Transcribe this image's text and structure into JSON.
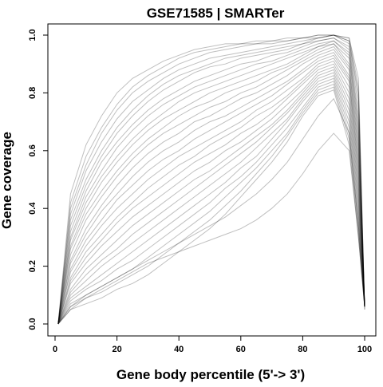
{
  "chart_data": {
    "type": "line",
    "title": "GSE71585 | SMARTer",
    "xlabel": "Gene body percentile (5'-> 3')",
    "ylabel": "Gene coverage",
    "xlim": [
      0,
      100
    ],
    "ylim": [
      0,
      1
    ],
    "x_ticks": [
      "0",
      "20",
      "40",
      "60",
      "80",
      "100"
    ],
    "y_ticks": [
      "0.0",
      "0.2",
      "0.4",
      "0.6",
      "0.8",
      "1.0"
    ],
    "grid": false,
    "legend": "none",
    "line_color": "#000000",
    "line_opacity": 0.25,
    "x": [
      1,
      5,
      10,
      15,
      20,
      25,
      30,
      35,
      40,
      45,
      50,
      55,
      60,
      65,
      70,
      75,
      80,
      85,
      90,
      95,
      98,
      100
    ],
    "series": [
      {
        "values": [
          0,
          0.45,
          0.62,
          0.72,
          0.8,
          0.85,
          0.88,
          0.91,
          0.93,
          0.95,
          0.96,
          0.97,
          0.97,
          0.98,
          0.98,
          0.99,
          0.99,
          1.0,
          1.0,
          0.99,
          0.85,
          0.05
        ]
      },
      {
        "values": [
          0,
          0.42,
          0.58,
          0.68,
          0.76,
          0.82,
          0.86,
          0.89,
          0.92,
          0.94,
          0.95,
          0.96,
          0.97,
          0.97,
          0.98,
          0.98,
          0.99,
          0.99,
          1.0,
          0.99,
          0.82,
          0.05
        ]
      },
      {
        "values": [
          0,
          0.4,
          0.55,
          0.66,
          0.74,
          0.8,
          0.84,
          0.87,
          0.9,
          0.92,
          0.94,
          0.95,
          0.96,
          0.97,
          0.97,
          0.98,
          0.99,
          1.0,
          1.0,
          0.98,
          0.8,
          0.06
        ]
      },
      {
        "values": [
          0,
          0.38,
          0.53,
          0.63,
          0.71,
          0.77,
          0.81,
          0.85,
          0.88,
          0.9,
          0.92,
          0.93,
          0.94,
          0.95,
          0.96,
          0.97,
          0.98,
          0.99,
          1.0,
          0.98,
          0.78,
          0.06
        ]
      },
      {
        "values": [
          0,
          0.36,
          0.5,
          0.6,
          0.68,
          0.74,
          0.79,
          0.83,
          0.86,
          0.88,
          0.9,
          0.92,
          0.93,
          0.94,
          0.95,
          0.96,
          0.97,
          0.99,
          1.0,
          0.97,
          0.75,
          0.06
        ]
      },
      {
        "values": [
          0,
          0.34,
          0.48,
          0.58,
          0.66,
          0.72,
          0.77,
          0.81,
          0.84,
          0.87,
          0.89,
          0.9,
          0.92,
          0.93,
          0.94,
          0.95,
          0.97,
          0.98,
          0.99,
          0.96,
          0.72,
          0.06
        ]
      },
      {
        "values": [
          0,
          0.32,
          0.46,
          0.56,
          0.63,
          0.69,
          0.74,
          0.78,
          0.81,
          0.84,
          0.86,
          0.88,
          0.9,
          0.91,
          0.93,
          0.94,
          0.96,
          0.98,
          0.99,
          0.95,
          0.7,
          0.06
        ]
      },
      {
        "values": [
          0,
          0.3,
          0.44,
          0.53,
          0.61,
          0.67,
          0.72,
          0.76,
          0.79,
          0.82,
          0.84,
          0.86,
          0.88,
          0.9,
          0.91,
          0.93,
          0.95,
          0.97,
          0.98,
          0.94,
          0.68,
          0.06
        ]
      },
      {
        "values": [
          0,
          0.29,
          0.42,
          0.51,
          0.58,
          0.64,
          0.69,
          0.73,
          0.77,
          0.8,
          0.82,
          0.84,
          0.86,
          0.88,
          0.9,
          0.92,
          0.94,
          0.96,
          0.98,
          0.93,
          0.66,
          0.06
        ]
      },
      {
        "values": [
          0,
          0.27,
          0.4,
          0.49,
          0.56,
          0.62,
          0.67,
          0.71,
          0.74,
          0.77,
          0.8,
          0.82,
          0.84,
          0.86,
          0.88,
          0.9,
          0.93,
          0.96,
          0.97,
          0.92,
          0.64,
          0.06
        ]
      },
      {
        "values": [
          0,
          0.26,
          0.38,
          0.46,
          0.53,
          0.59,
          0.64,
          0.68,
          0.72,
          0.75,
          0.77,
          0.8,
          0.82,
          0.84,
          0.87,
          0.89,
          0.92,
          0.95,
          0.97,
          0.9,
          0.62,
          0.06
        ]
      },
      {
        "values": [
          0,
          0.24,
          0.36,
          0.44,
          0.51,
          0.57,
          0.62,
          0.66,
          0.69,
          0.72,
          0.75,
          0.77,
          0.8,
          0.82,
          0.85,
          0.88,
          0.91,
          0.94,
          0.96,
          0.89,
          0.6,
          0.06
        ]
      },
      {
        "values": [
          0,
          0.22,
          0.33,
          0.41,
          0.48,
          0.54,
          0.59,
          0.63,
          0.66,
          0.7,
          0.72,
          0.75,
          0.78,
          0.8,
          0.83,
          0.86,
          0.9,
          0.93,
          0.95,
          0.88,
          0.58,
          0.06
        ]
      },
      {
        "values": [
          0,
          0.21,
          0.31,
          0.39,
          0.45,
          0.51,
          0.56,
          0.6,
          0.63,
          0.67,
          0.7,
          0.72,
          0.75,
          0.78,
          0.81,
          0.84,
          0.88,
          0.92,
          0.94,
          0.86,
          0.56,
          0.06
        ]
      },
      {
        "values": [
          0,
          0.19,
          0.29,
          0.36,
          0.43,
          0.48,
          0.53,
          0.57,
          0.6,
          0.64,
          0.67,
          0.7,
          0.73,
          0.76,
          0.79,
          0.83,
          0.87,
          0.91,
          0.93,
          0.85,
          0.54,
          0.06
        ]
      },
      {
        "values": [
          0,
          0.18,
          0.27,
          0.34,
          0.4,
          0.45,
          0.5,
          0.54,
          0.58,
          0.61,
          0.64,
          0.67,
          0.7,
          0.74,
          0.77,
          0.81,
          0.85,
          0.9,
          0.92,
          0.84,
          0.52,
          0.06
        ]
      },
      {
        "values": [
          0,
          0.16,
          0.25,
          0.31,
          0.37,
          0.42,
          0.47,
          0.51,
          0.55,
          0.58,
          0.62,
          0.65,
          0.68,
          0.72,
          0.75,
          0.79,
          0.84,
          0.89,
          0.91,
          0.82,
          0.5,
          0.06
        ]
      },
      {
        "values": [
          0,
          0.15,
          0.23,
          0.29,
          0.35,
          0.4,
          0.44,
          0.48,
          0.52,
          0.56,
          0.59,
          0.62,
          0.66,
          0.69,
          0.73,
          0.78,
          0.83,
          0.88,
          0.9,
          0.8,
          0.48,
          0.06
        ]
      },
      {
        "values": [
          0,
          0.14,
          0.21,
          0.27,
          0.32,
          0.37,
          0.41,
          0.45,
          0.49,
          0.53,
          0.56,
          0.6,
          0.63,
          0.67,
          0.71,
          0.76,
          0.81,
          0.87,
          0.89,
          0.78,
          0.46,
          0.06
        ]
      },
      {
        "values": [
          0,
          0.12,
          0.19,
          0.24,
          0.29,
          0.34,
          0.38,
          0.42,
          0.46,
          0.5,
          0.53,
          0.57,
          0.61,
          0.65,
          0.69,
          0.74,
          0.8,
          0.86,
          0.88,
          0.76,
          0.44,
          0.06
        ]
      },
      {
        "values": [
          0,
          0.11,
          0.17,
          0.22,
          0.26,
          0.31,
          0.35,
          0.39,
          0.43,
          0.47,
          0.51,
          0.55,
          0.59,
          0.63,
          0.68,
          0.73,
          0.79,
          0.85,
          0.87,
          0.74,
          0.42,
          0.06
        ]
      },
      {
        "values": [
          0,
          0.1,
          0.15,
          0.2,
          0.24,
          0.28,
          0.32,
          0.36,
          0.4,
          0.44,
          0.48,
          0.52,
          0.56,
          0.61,
          0.66,
          0.71,
          0.78,
          0.84,
          0.86,
          0.72,
          0.4,
          0.06
        ]
      },
      {
        "values": [
          0,
          0.09,
          0.13,
          0.17,
          0.21,
          0.25,
          0.29,
          0.33,
          0.37,
          0.41,
          0.45,
          0.49,
          0.54,
          0.58,
          0.64,
          0.7,
          0.77,
          0.83,
          0.85,
          0.7,
          0.38,
          0.06
        ]
      },
      {
        "values": [
          0,
          0.08,
          0.12,
          0.15,
          0.19,
          0.22,
          0.26,
          0.3,
          0.34,
          0.38,
          0.42,
          0.47,
          0.51,
          0.56,
          0.62,
          0.68,
          0.75,
          0.82,
          0.84,
          0.68,
          0.36,
          0.06
        ]
      },
      {
        "values": [
          0,
          0.07,
          0.1,
          0.13,
          0.16,
          0.19,
          0.23,
          0.27,
          0.31,
          0.35,
          0.39,
          0.44,
          0.49,
          0.54,
          0.6,
          0.66,
          0.74,
          0.81,
          0.83,
          0.66,
          0.34,
          0.06
        ]
      },
      {
        "values": [
          0,
          0.06,
          0.09,
          0.11,
          0.14,
          0.17,
          0.2,
          0.24,
          0.28,
          0.32,
          0.36,
          0.41,
          0.46,
          0.52,
          0.58,
          0.65,
          0.73,
          0.8,
          0.82,
          0.64,
          0.32,
          0.06
        ]
      },
      {
        "values": [
          0,
          0.05,
          0.07,
          0.09,
          0.12,
          0.14,
          0.17,
          0.21,
          0.25,
          0.29,
          0.33,
          0.38,
          0.44,
          0.5,
          0.56,
          0.63,
          0.72,
          0.79,
          0.81,
          0.62,
          0.3,
          0.06
        ]
      },
      {
        "values": [
          0,
          0.05,
          0.09,
          0.12,
          0.15,
          0.18,
          0.21,
          0.23,
          0.25,
          0.27,
          0.29,
          0.31,
          0.33,
          0.36,
          0.4,
          0.45,
          0.52,
          0.6,
          0.66,
          0.6,
          0.3,
          0.06
        ]
      },
      {
        "values": [
          0,
          0.06,
          0.1,
          0.13,
          0.16,
          0.19,
          0.22,
          0.25,
          0.28,
          0.31,
          0.34,
          0.37,
          0.41,
          0.45,
          0.5,
          0.56,
          0.64,
          0.72,
          0.78,
          0.66,
          0.34,
          0.06
        ]
      }
    ]
  }
}
